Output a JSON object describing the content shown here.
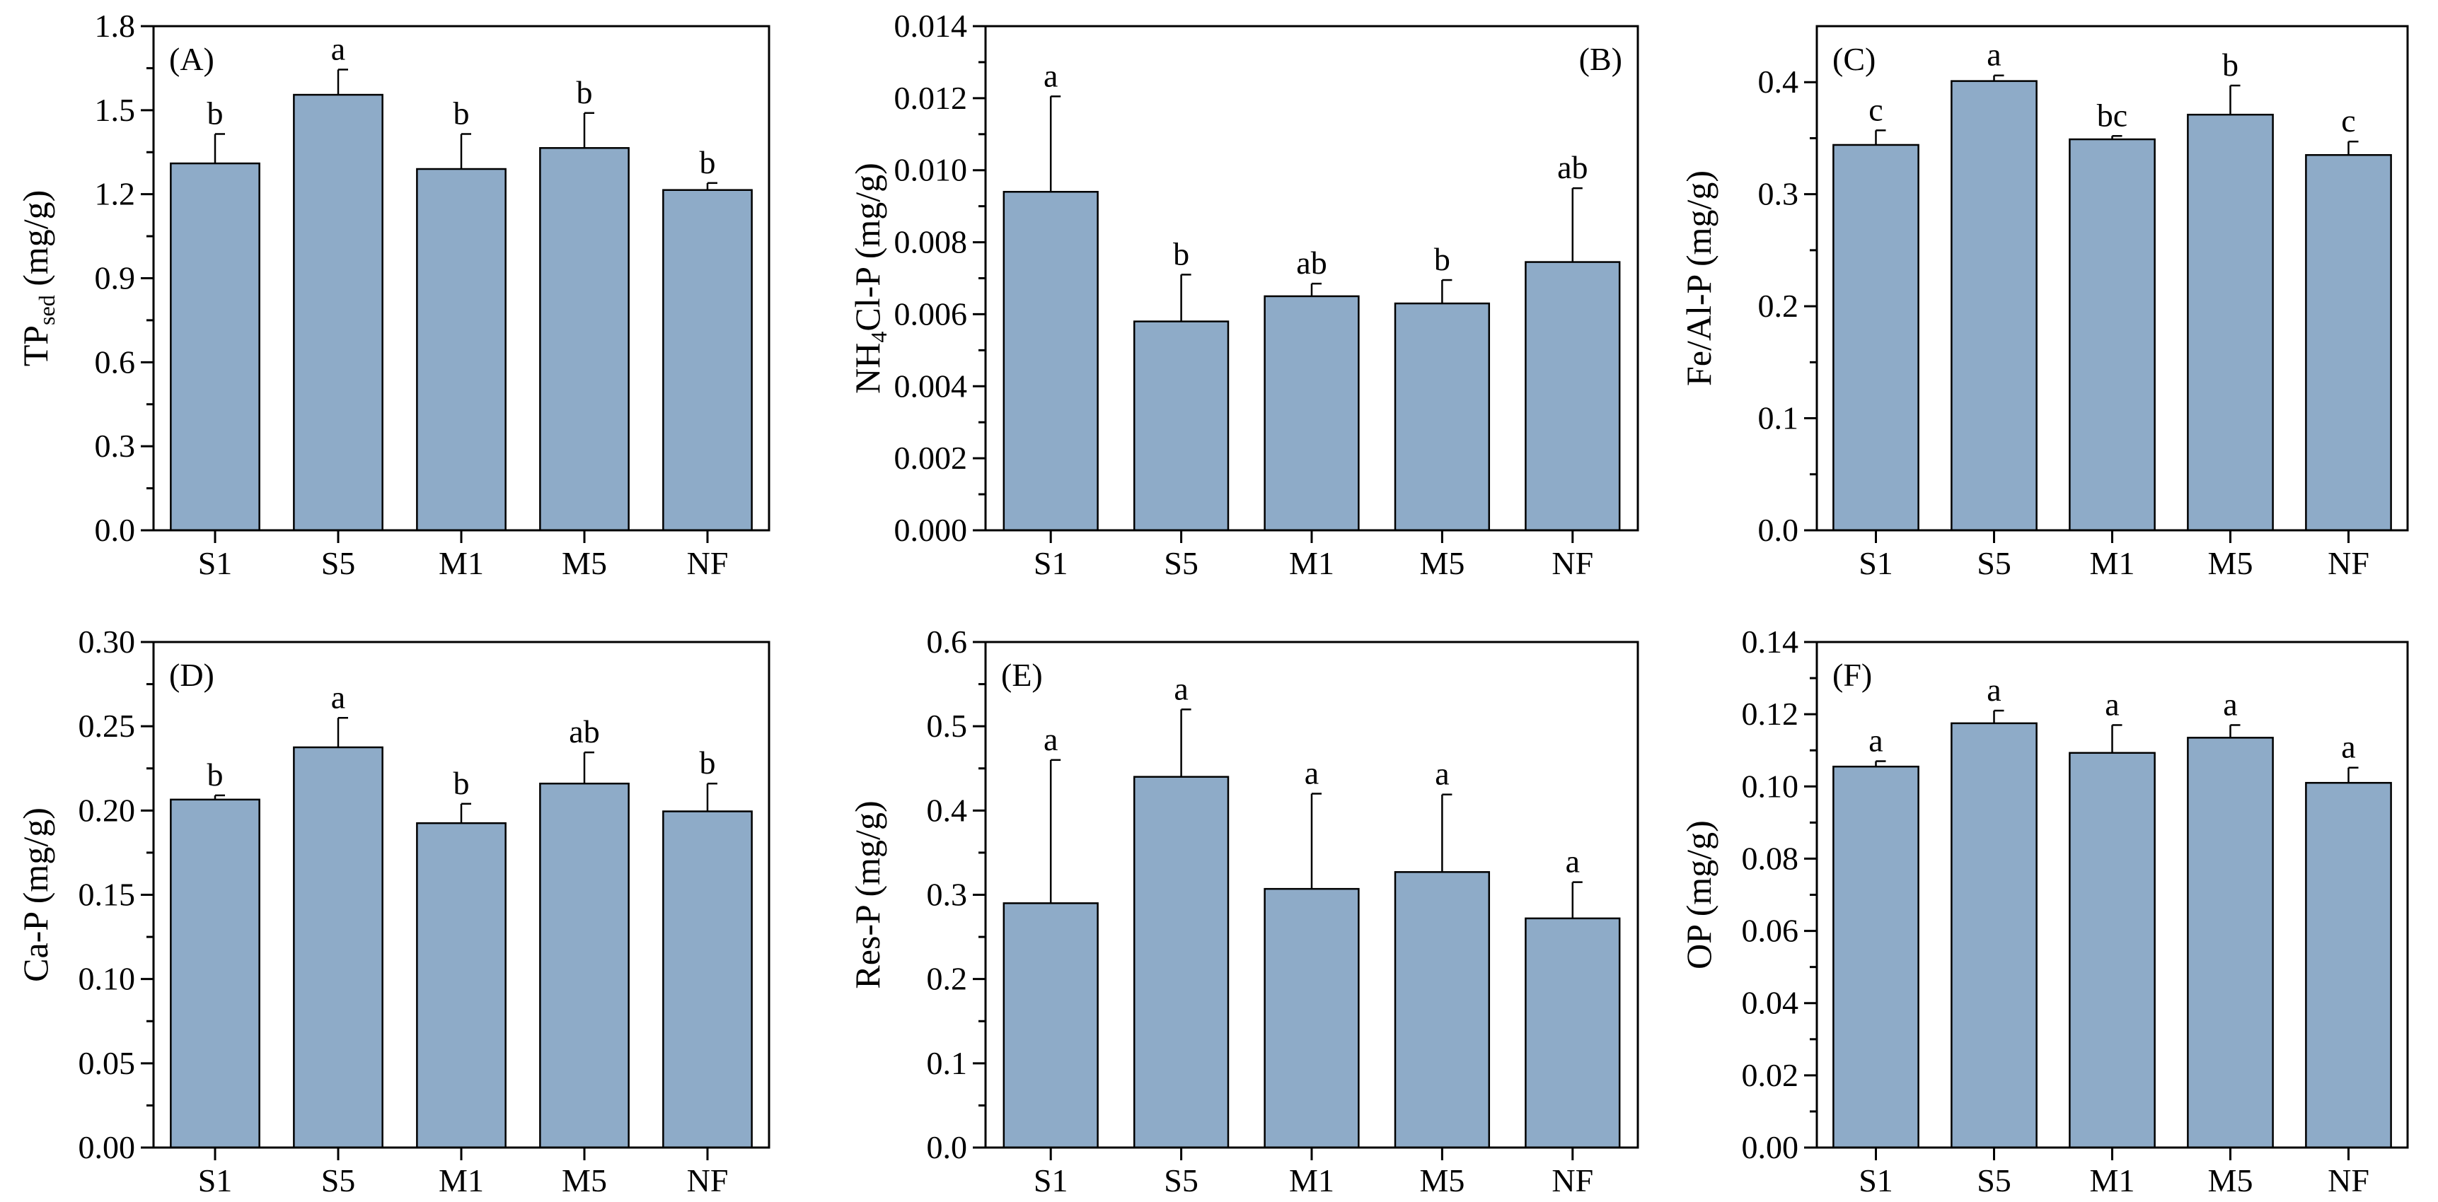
{
  "figure": {
    "bar_color": "#8eabc8",
    "bar_edge_color": "#000000",
    "background": "#ffffff"
  },
  "chart_data": [
    {
      "type": "bar",
      "panel_label": "(A)",
      "panel_label_position": "top-left",
      "ylabel": "TP",
      "ylabel_sub": "sed",
      "ylabel_suffix": " (mg/g)",
      "categories": [
        "S1",
        "S5",
        "M1",
        "M5",
        "NF"
      ],
      "values": [
        1.31,
        1.555,
        1.29,
        1.365,
        1.215
      ],
      "errors": [
        0.105,
        0.09,
        0.125,
        0.125,
        0.025
      ],
      "significance": [
        "b",
        "a",
        "b",
        "b",
        "b"
      ],
      "ylim": [
        0,
        1.8
      ],
      "yticks": [
        0,
        0.3,
        0.6,
        0.9,
        1.2,
        1.5,
        1.8
      ],
      "ytick_labels": [
        "0.0",
        "0.3",
        "0.6",
        "0.9",
        "1.2",
        "1.5",
        "1.8"
      ],
      "minor_ticks": true
    },
    {
      "type": "bar",
      "panel_label": "(B)",
      "panel_label_position": "top-right",
      "ylabel": "NH",
      "ylabel_sub": "4",
      "ylabel_suffix": "Cl-P (mg/g)",
      "categories": [
        "S1",
        "S5",
        "M1",
        "M5",
        "NF"
      ],
      "values": [
        0.0094,
        0.0058,
        0.0065,
        0.0063,
        0.00745
      ],
      "errors": [
        0.00265,
        0.0013,
        0.00035,
        0.00065,
        0.00205
      ],
      "significance": [
        "a",
        "b",
        "ab",
        "b",
        "ab"
      ],
      "ylim": [
        0,
        0.014
      ],
      "yticks": [
        0,
        0.002,
        0.004,
        0.006,
        0.008,
        0.01,
        0.012,
        0.014
      ],
      "ytick_labels": [
        "0.000",
        "0.002",
        "0.004",
        "0.006",
        "0.008",
        "0.010",
        "0.012",
        "0.014"
      ],
      "minor_ticks": true
    },
    {
      "type": "bar",
      "panel_label": "(C)",
      "panel_label_position": "top-left",
      "ylabel": "Fe/Al-P (mg/g)",
      "ylabel_sub": "",
      "ylabel_suffix": "",
      "categories": [
        "S1",
        "S5",
        "M1",
        "M5",
        "NF"
      ],
      "values": [
        0.344,
        0.401,
        0.349,
        0.371,
        0.335
      ],
      "errors": [
        0.013,
        0.005,
        0.003,
        0.026,
        0.012
      ],
      "significance": [
        "c",
        "a",
        "bc",
        "b",
        "c"
      ],
      "ylim": [
        0,
        0.45
      ],
      "yticks": [
        0,
        0.1,
        0.2,
        0.3,
        0.4
      ],
      "ytick_labels": [
        "0.0",
        "0.1",
        "0.2",
        "0.3",
        "0.4"
      ],
      "minor_ticks": true
    },
    {
      "type": "bar",
      "panel_label": "(D)",
      "panel_label_position": "top-left",
      "ylabel": "Ca-P (mg/g)",
      "ylabel_sub": "",
      "ylabel_suffix": "",
      "categories": [
        "S1",
        "S5",
        "M1",
        "M5",
        "NF"
      ],
      "values": [
        0.2065,
        0.2375,
        0.1925,
        0.216,
        0.1995
      ],
      "errors": [
        0.0025,
        0.0175,
        0.0115,
        0.0185,
        0.0165
      ],
      "significance": [
        "b",
        "a",
        "b",
        "ab",
        "b"
      ],
      "ylim": [
        0,
        0.3
      ],
      "yticks": [
        0,
        0.05,
        0.1,
        0.15,
        0.2,
        0.25,
        0.3
      ],
      "ytick_labels": [
        "0.00",
        "0.05",
        "0.10",
        "0.15",
        "0.20",
        "0.25",
        "0.30"
      ],
      "minor_ticks": true
    },
    {
      "type": "bar",
      "panel_label": "(E)",
      "panel_label_position": "top-left",
      "ylabel": "Res-P (mg/g)",
      "ylabel_sub": "",
      "ylabel_suffix": "",
      "categories": [
        "S1",
        "S5",
        "M1",
        "M5",
        "NF"
      ],
      "values": [
        0.29,
        0.44,
        0.307,
        0.327,
        0.272
      ],
      "errors": [
        0.17,
        0.08,
        0.113,
        0.092,
        0.043
      ],
      "significance": [
        "a",
        "a",
        "a",
        "a",
        "a"
      ],
      "ylim": [
        0,
        0.6
      ],
      "yticks": [
        0,
        0.1,
        0.2,
        0.3,
        0.4,
        0.5,
        0.6
      ],
      "ytick_labels": [
        "0.0",
        "0.1",
        "0.2",
        "0.3",
        "0.4",
        "0.5",
        "0.6"
      ],
      "minor_ticks": true
    },
    {
      "type": "bar",
      "panel_label": "(F)",
      "panel_label_position": "top-left",
      "ylabel": "OP (mg/g)",
      "ylabel_sub": "",
      "ylabel_suffix": "",
      "categories": [
        "S1",
        "S5",
        "M1",
        "M5",
        "NF"
      ],
      "values": [
        0.1055,
        0.1175,
        0.1093,
        0.1135,
        0.101
      ],
      "errors": [
        0.0015,
        0.0035,
        0.0077,
        0.0035,
        0.0042
      ],
      "significance": [
        "a",
        "a",
        "a",
        "a",
        "a"
      ],
      "ylim": [
        0,
        0.14
      ],
      "yticks": [
        0,
        0.02,
        0.04,
        0.06,
        0.08,
        0.1,
        0.12,
        0.14
      ],
      "ytick_labels": [
        "0.00",
        "0.02",
        "0.04",
        "0.06",
        "0.08",
        "0.10",
        "0.12",
        "0.14"
      ],
      "minor_ticks": true
    }
  ]
}
